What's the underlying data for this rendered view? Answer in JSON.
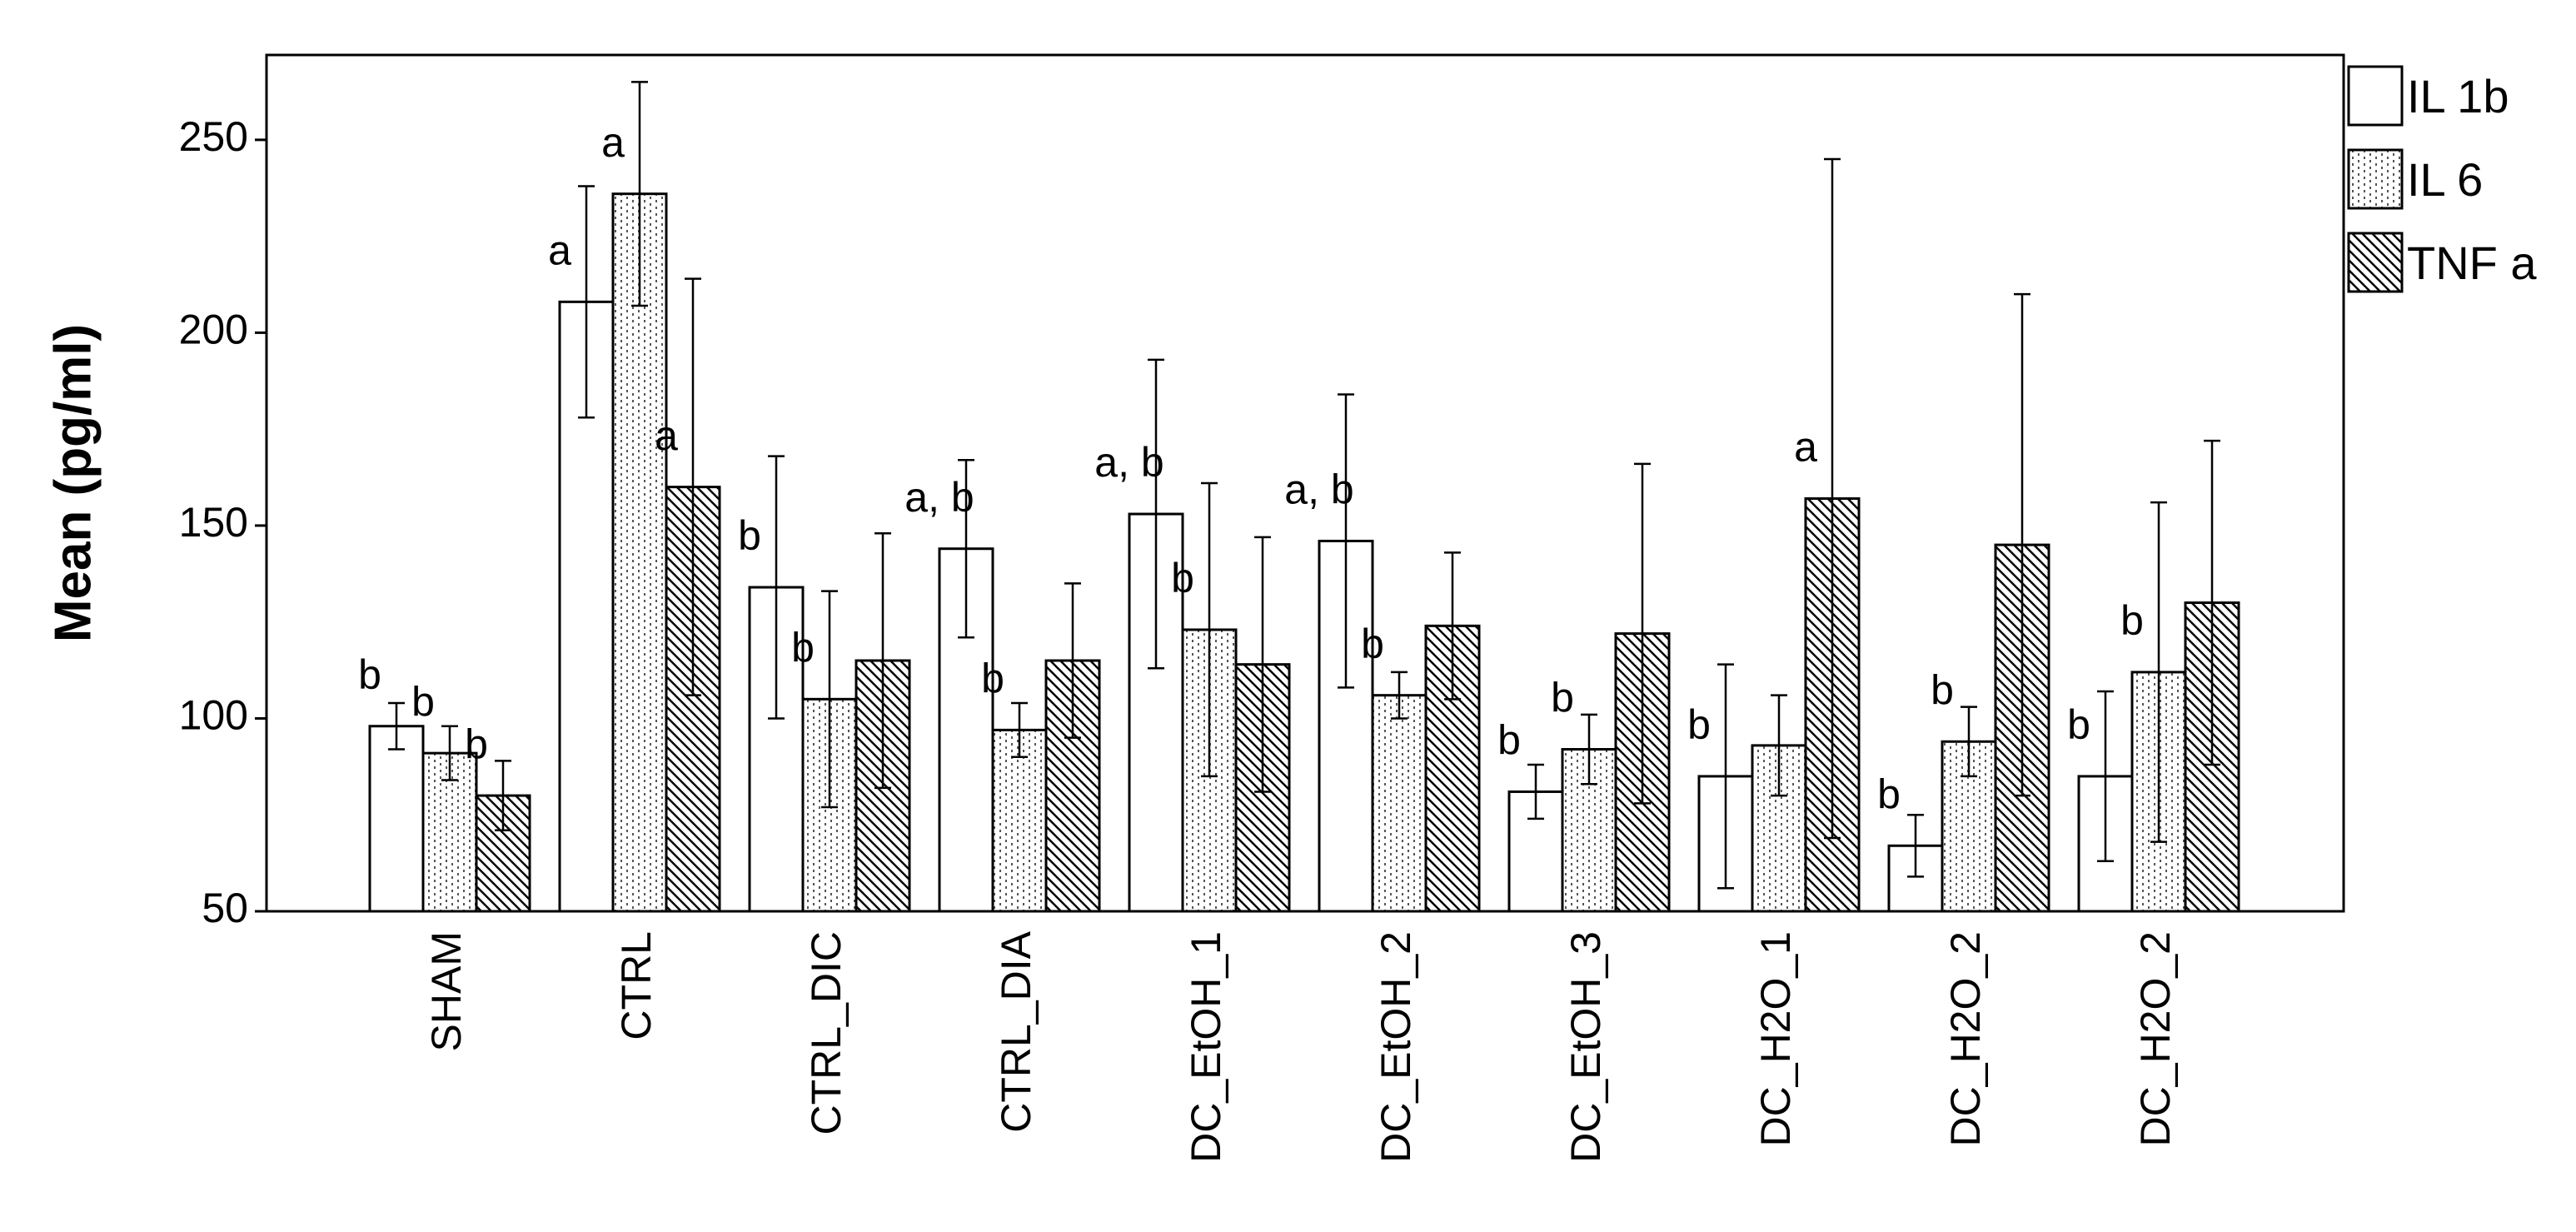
{
  "chart_data": {
    "type": "bar",
    "ylabel": "Mean (pg/ml)",
    "categories": [
      "SHAM",
      "CTRL",
      "CTRL_DIC",
      "CTRL_DIA",
      "DC_EtOH_1",
      "DC_EtOH_2",
      "DC_EtOH_3",
      "DC_H2O_1",
      "DC_H2O_2",
      "DC_H2O_2"
    ],
    "series": [
      {
        "name": "IL 1b",
        "color": "#ffffff",
        "hatch": "none",
        "values": [
          98,
          208,
          134,
          144,
          153,
          146,
          81,
          85,
          67,
          85
        ],
        "errors": [
          6,
          30,
          34,
          23,
          40,
          38,
          7,
          29,
          8,
          22
        ],
        "labels": [
          "b",
          "a",
          "b",
          "a, b",
          "a, b",
          "a, b",
          "b",
          "b",
          "b",
          "b"
        ]
      },
      {
        "name": "IL 6",
        "color": "#ffffff",
        "hatch": "dots",
        "values": [
          91,
          236,
          105,
          97,
          123,
          106,
          92,
          93,
          94,
          112
        ],
        "errors": [
          7,
          29,
          28,
          7,
          38,
          6,
          9,
          13,
          9,
          44
        ],
        "labels": [
          "b",
          "a",
          "b",
          "b",
          "b",
          "b",
          "b",
          null,
          "b",
          "b"
        ]
      },
      {
        "name": "TNF a",
        "color": "#ffffff",
        "hatch": "diagonal",
        "values": [
          80,
          160,
          115,
          115,
          114,
          124,
          122,
          157,
          145,
          130
        ],
        "errors": [
          9,
          54,
          33,
          20,
          33,
          19,
          44,
          88,
          65,
          42
        ],
        "labels": [
          "b",
          "a",
          null,
          null,
          null,
          null,
          null,
          "a",
          null,
          null
        ]
      }
    ],
    "ylim": [
      50,
      272
    ],
    "yticks": [
      50,
      100,
      150,
      200,
      250
    ],
    "grid": false,
    "legend": "right"
  }
}
